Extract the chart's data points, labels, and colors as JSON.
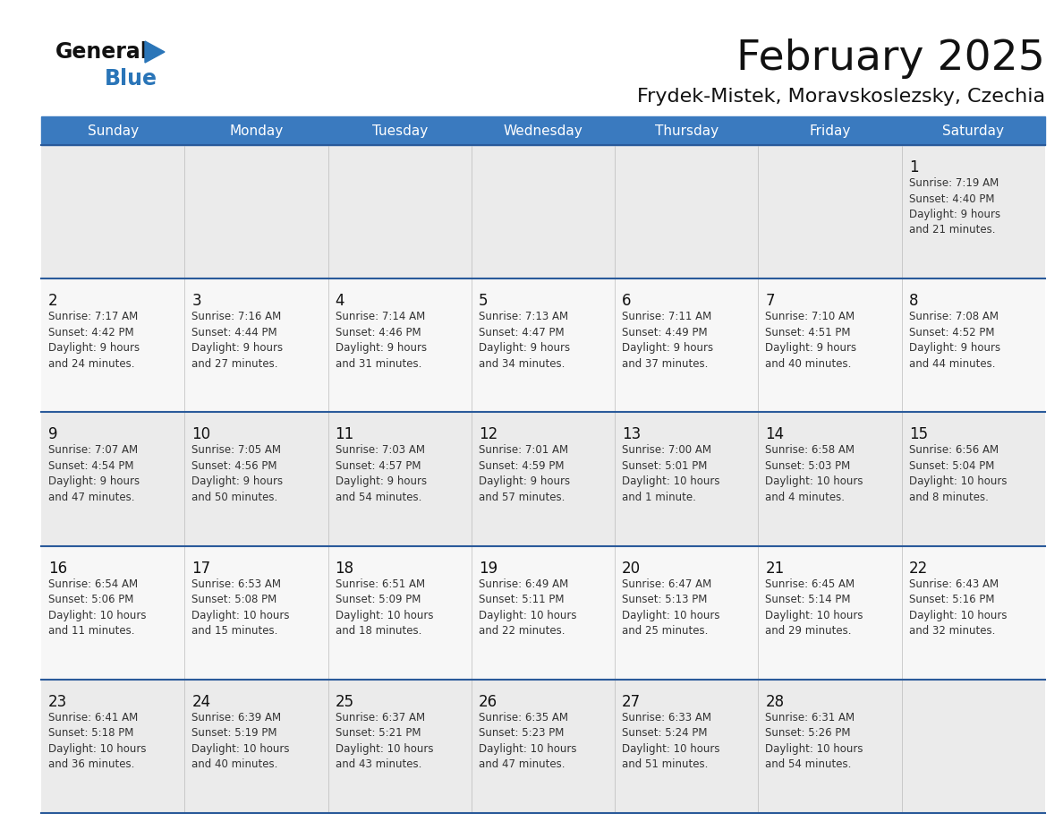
{
  "title": "February 2025",
  "subtitle": "Frydek-Mistek, Moravskoslezsky, Czechia",
  "days_of_week": [
    "Sunday",
    "Monday",
    "Tuesday",
    "Wednesday",
    "Thursday",
    "Friday",
    "Saturday"
  ],
  "header_bg": "#3a7abf",
  "header_text": "#ffffff",
  "cell_bg_odd": "#ebebeb",
  "cell_bg_even": "#f7f7f7",
  "row_separator_color": "#2a5a9a",
  "grid_line_color": "#bbbbbb",
  "title_color": "#111111",
  "subtitle_color": "#111111",
  "day_number_color": "#111111",
  "text_color": "#333333",
  "logo_general_color": "#111111",
  "logo_blue_color": "#2a75b8",
  "logo_triangle_color": "#2a75b8",
  "calendar": [
    [
      null,
      null,
      null,
      null,
      null,
      null,
      1
    ],
    [
      2,
      3,
      4,
      5,
      6,
      7,
      8
    ],
    [
      9,
      10,
      11,
      12,
      13,
      14,
      15
    ],
    [
      16,
      17,
      18,
      19,
      20,
      21,
      22
    ],
    [
      23,
      24,
      25,
      26,
      27,
      28,
      null
    ]
  ],
  "day_data": {
    "1": {
      "sunrise": "7:19 AM",
      "sunset": "4:40 PM",
      "daylight_h": "9 hours",
      "daylight_m": "21 minutes"
    },
    "2": {
      "sunrise": "7:17 AM",
      "sunset": "4:42 PM",
      "daylight_h": "9 hours",
      "daylight_m": "24 minutes"
    },
    "3": {
      "sunrise": "7:16 AM",
      "sunset": "4:44 PM",
      "daylight_h": "9 hours",
      "daylight_m": "27 minutes"
    },
    "4": {
      "sunrise": "7:14 AM",
      "sunset": "4:46 PM",
      "daylight_h": "9 hours",
      "daylight_m": "31 minutes"
    },
    "5": {
      "sunrise": "7:13 AM",
      "sunset": "4:47 PM",
      "daylight_h": "9 hours",
      "daylight_m": "34 minutes"
    },
    "6": {
      "sunrise": "7:11 AM",
      "sunset": "4:49 PM",
      "daylight_h": "9 hours",
      "daylight_m": "37 minutes"
    },
    "7": {
      "sunrise": "7:10 AM",
      "sunset": "4:51 PM",
      "daylight_h": "9 hours",
      "daylight_m": "40 minutes"
    },
    "8": {
      "sunrise": "7:08 AM",
      "sunset": "4:52 PM",
      "daylight_h": "9 hours",
      "daylight_m": "44 minutes"
    },
    "9": {
      "sunrise": "7:07 AM",
      "sunset": "4:54 PM",
      "daylight_h": "9 hours",
      "daylight_m": "47 minutes"
    },
    "10": {
      "sunrise": "7:05 AM",
      "sunset": "4:56 PM",
      "daylight_h": "9 hours",
      "daylight_m": "50 minutes"
    },
    "11": {
      "sunrise": "7:03 AM",
      "sunset": "4:57 PM",
      "daylight_h": "9 hours",
      "daylight_m": "54 minutes"
    },
    "12": {
      "sunrise": "7:01 AM",
      "sunset": "4:59 PM",
      "daylight_h": "9 hours",
      "daylight_m": "57 minutes"
    },
    "13": {
      "sunrise": "7:00 AM",
      "sunset": "5:01 PM",
      "daylight_h": "10 hours",
      "daylight_m": "1 minute"
    },
    "14": {
      "sunrise": "6:58 AM",
      "sunset": "5:03 PM",
      "daylight_h": "10 hours",
      "daylight_m": "4 minutes"
    },
    "15": {
      "sunrise": "6:56 AM",
      "sunset": "5:04 PM",
      "daylight_h": "10 hours",
      "daylight_m": "8 minutes"
    },
    "16": {
      "sunrise": "6:54 AM",
      "sunset": "5:06 PM",
      "daylight_h": "10 hours",
      "daylight_m": "11 minutes"
    },
    "17": {
      "sunrise": "6:53 AM",
      "sunset": "5:08 PM",
      "daylight_h": "10 hours",
      "daylight_m": "15 minutes"
    },
    "18": {
      "sunrise": "6:51 AM",
      "sunset": "5:09 PM",
      "daylight_h": "10 hours",
      "daylight_m": "18 minutes"
    },
    "19": {
      "sunrise": "6:49 AM",
      "sunset": "5:11 PM",
      "daylight_h": "10 hours",
      "daylight_m": "22 minutes"
    },
    "20": {
      "sunrise": "6:47 AM",
      "sunset": "5:13 PM",
      "daylight_h": "10 hours",
      "daylight_m": "25 minutes"
    },
    "21": {
      "sunrise": "6:45 AM",
      "sunset": "5:14 PM",
      "daylight_h": "10 hours",
      "daylight_m": "29 minutes"
    },
    "22": {
      "sunrise": "6:43 AM",
      "sunset": "5:16 PM",
      "daylight_h": "10 hours",
      "daylight_m": "32 minutes"
    },
    "23": {
      "sunrise": "6:41 AM",
      "sunset": "5:18 PM",
      "daylight_h": "10 hours",
      "daylight_m": "36 minutes"
    },
    "24": {
      "sunrise": "6:39 AM",
      "sunset": "5:19 PM",
      "daylight_h": "10 hours",
      "daylight_m": "40 minutes"
    },
    "25": {
      "sunrise": "6:37 AM",
      "sunset": "5:21 PM",
      "daylight_h": "10 hours",
      "daylight_m": "43 minutes"
    },
    "26": {
      "sunrise": "6:35 AM",
      "sunset": "5:23 PM",
      "daylight_h": "10 hours",
      "daylight_m": "47 minutes"
    },
    "27": {
      "sunrise": "6:33 AM",
      "sunset": "5:24 PM",
      "daylight_h": "10 hours",
      "daylight_m": "51 minutes"
    },
    "28": {
      "sunrise": "6:31 AM",
      "sunset": "5:26 PM",
      "daylight_h": "10 hours",
      "daylight_m": "54 minutes"
    }
  }
}
